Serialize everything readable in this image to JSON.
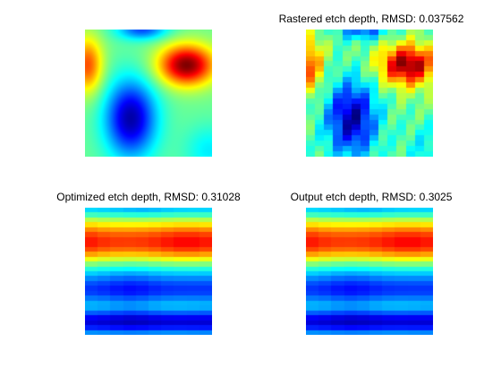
{
  "chart_data": [
    {
      "type": "heatmap",
      "title": "",
      "colormap": "jet",
      "view": "original",
      "axes_visible": false
    },
    {
      "type": "heatmap",
      "title": "Rastered etch depth, RMSD: 0.037562",
      "colormap": "jet",
      "view": "rastered",
      "axes_visible": false
    },
    {
      "type": "heatmap",
      "title": "Optimized etch depth, RMSD: 0.31028",
      "colormap": "jet",
      "view": "banded",
      "axes_visible": false
    },
    {
      "type": "heatmap",
      "title": "Output etch depth, RMSD: 0.3025",
      "colormap": "jet",
      "view": "banded",
      "axes_visible": false
    }
  ]
}
